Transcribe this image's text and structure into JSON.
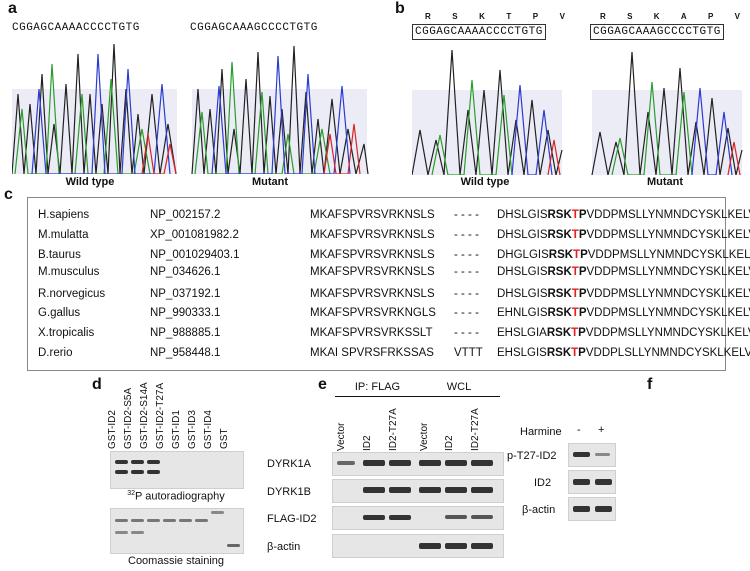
{
  "panel_a": {
    "label": "a",
    "wild_type": {
      "sequence": "CGGAGCAAAACCCCTGTG",
      "caption": "Wild type"
    },
    "mutant": {
      "sequence": "CGGAGCAAAGCCCCTGTG",
      "caption": "Mutant"
    }
  },
  "panel_b": {
    "label": "b",
    "wild_type": {
      "amino_acids": [
        "R",
        "S",
        "K",
        "T",
        "P",
        "V"
      ],
      "sequence": "CGGAGCAAAACCCCTGTG",
      "caption": "Wild type"
    },
    "mutant": {
      "amino_acids": [
        "R",
        "S",
        "K",
        "A",
        "P",
        "V"
      ],
      "sequence": "CGGAGCAAAGCCCCTGTG",
      "caption": "Mutant"
    }
  },
  "panel_c": {
    "label": "c",
    "rows": [
      {
        "species": "H.sapiens",
        "accession": "NP_002157.2",
        "seq1": "MKAFSPVRSVRKNSLS",
        "gap": "- - - -",
        "pre": "DHSLGIS",
        "rsk": "RSK",
        "t": "T",
        "p": "P",
        "post": "VDDPMSLLYNMNDCYSKLKELV"
      },
      {
        "species": "M.mulatta",
        "accession": "XP_001081982.2",
        "seq1": "MKAFSPVRSVRKNSLS",
        "gap": "- - - -",
        "pre": "DHSLGIS",
        "rsk": "RSK",
        "t": "T",
        "p": "P",
        "post": "VDDPMSLLYNMNDCYSKLKELV"
      },
      {
        "species": "B.taurus",
        "accession": "NP_001029403.1",
        "seq1": "MKAFSPVRSVRKNSLS",
        "gap": "- - - -",
        "pre": "DHGLGIS",
        "rsk": "RSK",
        "t": "T",
        "p": "P",
        "post": "VDDPMSLLYNMNDCYSKLKELV"
      },
      {
        "species": "M.musculus",
        "accession": "NP_034626.1",
        "seq1": "MKAFSPVRSVRKNSLS",
        "gap": "- - - -",
        "pre": "DHSLGIS",
        "rsk": "RSK",
        "t": "T",
        "p": "P",
        "post": "VDDPMSLLYNMNDCYSKLKELV"
      },
      {
        "species": "R.norvegicus",
        "accession": "NP_037192.1",
        "seq1": "MKAFSPVRSVRKNSLS",
        "gap": "- - - -",
        "pre": "DHSLGIS",
        "rsk": "RSK",
        "t": "T",
        "p": "P",
        "post": "VDDPMSLLYNMNDCYSKLKELV"
      },
      {
        "species": "G.gallus",
        "accession": "NP_990333.1",
        "seq1": "MKAFSPVRSVRKNGLS",
        "gap": "- - - -",
        "pre": "EHNLGIS",
        "rsk": "RSK",
        "t": "T",
        "p": "P",
        "post": "VDDPMSLLYNMNDCYSKLKELV"
      },
      {
        "species": "X.tropicalis",
        "accession": "NP_988885.1",
        "seq1": "MKAFSPVRSVRKSSLT",
        "gap": "- - - -",
        "pre": "EHSLGIA",
        "rsk": "RSK",
        "t": "T",
        "p": "P",
        "post": "VDDPMSLLYNMNDCYSKLKELV"
      },
      {
        "species": "D.rerio",
        "accession": "NP_958448.1",
        "seq1": "MKAI SPVRSFRKSSAS",
        "gap": "VTTT",
        "pre": "EHSLGIS",
        "rsk": "RSK",
        "t": "T",
        "p": "P",
        "post": "VDDPLSLLYNMNDCYSKLKELV"
      }
    ]
  },
  "panel_d": {
    "label": "d",
    "lanes": [
      "GST-ID2",
      "GST-ID2-S5A",
      "GST-ID2-S14A",
      "GST-ID2-T27A",
      "GST-ID1",
      "GST-ID3",
      "GST-ID4",
      "GST"
    ],
    "autorad_caption_sup": "32",
    "autorad_caption": "P autoradiography",
    "coomassie_caption": "Coomassie staining"
  },
  "panel_e": {
    "label": "e",
    "group1": "IP: FLAG",
    "group2": "WCL",
    "lanes": [
      "Vector",
      "ID2",
      "ID2-T27A",
      "Vector",
      "ID2",
      "ID2-T27A"
    ],
    "blots": [
      "DYRK1A",
      "DYRK1B",
      "FLAG-ID2",
      "β-actin"
    ]
  },
  "panel_f": {
    "label": "f",
    "treatment": "Harmine",
    "conditions": [
      "-",
      "+"
    ],
    "blots": [
      "p-T27-ID2",
      "ID2",
      "β-actin"
    ]
  }
}
